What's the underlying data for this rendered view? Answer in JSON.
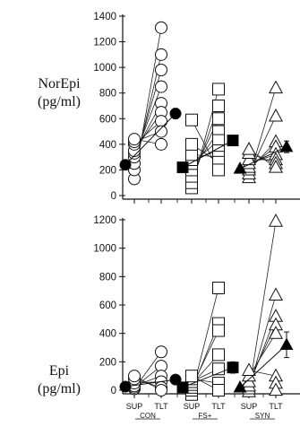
{
  "chart_data": [
    {
      "type": "scatter",
      "title": "",
      "ylabel_lines": [
        "NorEpi",
        "(pg/ml)"
      ],
      "ylim": [
        0,
        1400
      ],
      "yticks": [
        0,
        200,
        400,
        600,
        800,
        1000,
        1200,
        1400
      ],
      "categories": [
        "SUP",
        "TLT",
        "SUP",
        "TLT",
        "SUP",
        "TLT"
      ],
      "groups": [
        "CON",
        "FS+",
        "SYN"
      ],
      "grid": false,
      "series": [
        {
          "group": "CON",
          "marker": "circle",
          "sup": [
            130,
            200,
            250,
            300,
            330,
            350,
            400,
            420,
            440
          ],
          "tlt": [
            1310,
            1100,
            980,
            850,
            720,
            650,
            580,
            500,
            400
          ],
          "mean_sup": 240,
          "mean_tlt": 640,
          "err_tlt": 40
        },
        {
          "group": "FS+",
          "marker": "square",
          "sup": [
            60,
            100,
            150,
            200,
            250,
            280,
            320,
            400,
            590
          ],
          "tlt": [
            830,
            700,
            600,
            500,
            430,
            350,
            300,
            260,
            200
          ],
          "mean_sup": 220,
          "mean_tlt": 430,
          "err_tlt": 40
        },
        {
          "group": "SYN",
          "marker": "triangle",
          "sup": [
            140,
            170,
            200,
            220,
            250,
            280,
            330,
            360
          ],
          "tlt": [
            840,
            620,
            420,
            380,
            320,
            280,
            250,
            220
          ],
          "mean_sup": 210,
          "mean_tlt": 380,
          "err_tlt": 45
        }
      ]
    },
    {
      "type": "scatter",
      "title": "",
      "ylabel_lines": [
        "Epi",
        "(pg/ml)"
      ],
      "ylim": [
        0,
        1300
      ],
      "yticks": [
        0,
        200,
        400,
        600,
        800,
        1000,
        1200
      ],
      "categories": [
        "SUP",
        "TLT",
        "SUP",
        "TLT",
        "SUP",
        "TLT"
      ],
      "groups": [
        "CON",
        "FS+",
        "SYN"
      ],
      "grid": false,
      "series": [
        {
          "group": "CON",
          "marker": "circle",
          "sup": [
            10,
            20,
            30,
            50,
            80,
            100
          ],
          "tlt": [
            270,
            170,
            100,
            60,
            20,
            0
          ],
          "mean_sup": 25,
          "mean_tlt": 75,
          "err_tlt": 20
        },
        {
          "group": "FS+",
          "marker": "square",
          "sup": [
            -30,
            0,
            20,
            40,
            60,
            80,
            100
          ],
          "tlt": [
            720,
            470,
            420,
            250,
            150,
            50,
            0
          ],
          "mean_sup": 20,
          "mean_tlt": 160,
          "err_tlt": 40
        },
        {
          "group": "SYN",
          "marker": "triangle",
          "sup": [
            -10,
            10,
            30,
            60,
            100,
            140
          ],
          "tlt": [
            1190,
            670,
            520,
            460,
            400,
            100,
            50,
            0
          ],
          "mean_sup": 20,
          "mean_tlt": 320,
          "err_tlt": 90
        }
      ]
    }
  ]
}
